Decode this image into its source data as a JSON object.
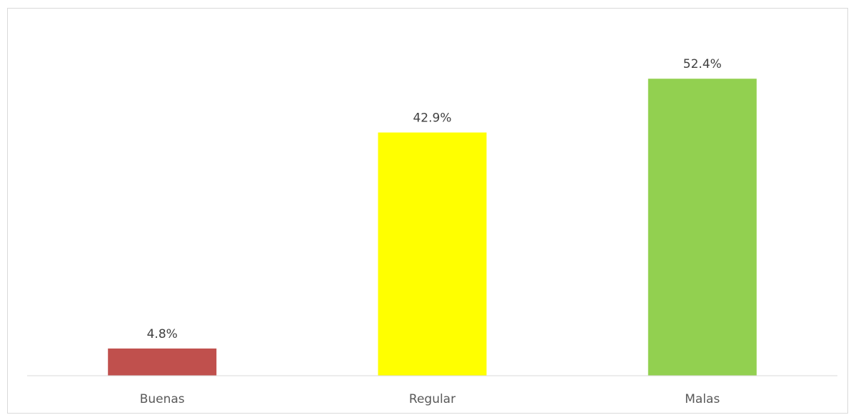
{
  "chart_data": {
    "type": "bar",
    "categories": [
      "Buenas",
      "Regular",
      "Malas"
    ],
    "values": [
      4.8,
      42.9,
      52.4
    ],
    "data_labels": [
      "4.8%",
      "42.9%",
      "52.4%"
    ],
    "colors": [
      "#c0504d",
      "#ffff00",
      "#92d050"
    ],
    "ylim": [
      0,
      60
    ],
    "title": "",
    "xlabel": "",
    "ylabel": "",
    "grid": false,
    "legend": "none",
    "axis_color": "#d9d9d9"
  }
}
